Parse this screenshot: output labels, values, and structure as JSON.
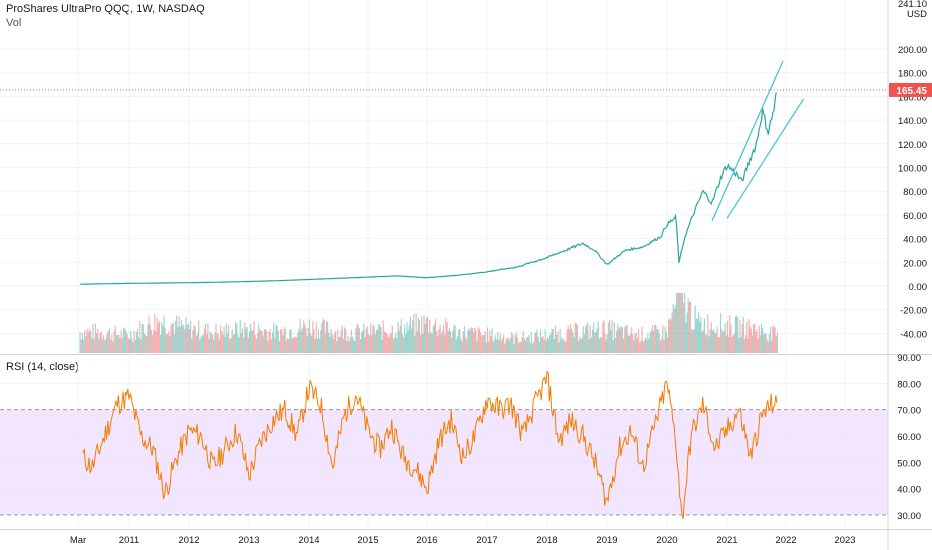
{
  "header": {
    "title": "ProShares UltraPro QQQ, 1W, NASDAQ",
    "volume_label": "Vol",
    "currency": "USD"
  },
  "colors": {
    "up": "#26a69a",
    "down": "#ef5350",
    "rsi_line": "#f57c00",
    "rsi_band": "#eedcff",
    "channel": "#4fc3d7",
    "price_tag": "#ef5350"
  },
  "chart_data": [
    {
      "type": "line",
      "title": "ProShares UltraPro QQQ, 1W, NASDAQ",
      "ylabel": "USD",
      "x_ticks": [
        "Mar",
        "2011",
        "2012",
        "2013",
        "2014",
        "2015",
        "2016",
        "2017",
        "2018",
        "2019",
        "2020",
        "2021",
        "2022",
        "2023"
      ],
      "y_ticks": [
        "-40.00",
        "-20.00",
        "0.00",
        "20.00",
        "40.00",
        "60.00",
        "80.00",
        "100.00",
        "120.00",
        "140.00",
        "160.00",
        "180.00",
        "200.00",
        "241.10"
      ],
      "ylim": [
        -55,
        241.1
      ],
      "last_price": 165.45,
      "last_price_label": "165.45",
      "series": [
        {
          "name": "Price",
          "x": [
            2010.2,
            2010.5,
            2011.0,
            2011.5,
            2012.0,
            2012.5,
            2013.0,
            2013.5,
            2014.0,
            2014.5,
            2015.0,
            2015.5,
            2016.0,
            2016.5,
            2017.0,
            2017.5,
            2018.0,
            2018.3,
            2018.6,
            2018.8,
            2019.0,
            2019.3,
            2019.6,
            2019.9,
            2020.0,
            2020.15,
            2020.2,
            2020.3,
            2020.45,
            2020.6,
            2020.75,
            2020.9,
            2021.0,
            2021.15,
            2021.25,
            2021.4,
            2021.5,
            2021.6,
            2021.7,
            2021.8,
            2021.85
          ],
          "y": [
            1.5,
            1.8,
            2.2,
            2.5,
            2.8,
            3.2,
            3.8,
            4.5,
            5.5,
            6.5,
            7.5,
            8.5,
            7.0,
            9.0,
            12.0,
            16.0,
            24.0,
            30.0,
            36.0,
            30.0,
            18.0,
            30.0,
            33.0,
            42.0,
            52.0,
            58.0,
            20.0,
            42.0,
            62.0,
            80.0,
            70.0,
            92.0,
            102.0,
            95.0,
            88.0,
            108.0,
            120.0,
            148.0,
            130.0,
            150.0,
            165.45
          ]
        }
      ],
      "channel": {
        "upper": {
          "x": [
            2020.75,
            2021.95
          ],
          "y": [
            55.0,
            190.0
          ]
        },
        "lower": {
          "x": [
            2021.0,
            2022.3
          ],
          "y": [
            57.0,
            158.0
          ]
        }
      }
    },
    {
      "type": "bar",
      "title": "Vol",
      "note": "volume pane, values relative (no printed scale)",
      "x": [
        2010.5,
        2011.0,
        2011.5,
        2012.0,
        2012.5,
        2013.0,
        2013.5,
        2014.0,
        2014.5,
        2015.0,
        2015.5,
        2016.0,
        2016.5,
        2017.0,
        2017.5,
        2018.0,
        2018.5,
        2019.0,
        2019.5,
        2020.0,
        2020.2,
        2020.5,
        2021.0,
        2021.5,
        2021.85
      ],
      "values": [
        0.35,
        0.3,
        0.55,
        0.4,
        0.35,
        0.4,
        0.35,
        0.45,
        0.35,
        0.35,
        0.4,
        0.5,
        0.35,
        0.3,
        0.25,
        0.3,
        0.35,
        0.4,
        0.3,
        0.35,
        1.0,
        0.5,
        0.45,
        0.4,
        0.3
      ]
    },
    {
      "type": "line",
      "title": "RSI (14, close)",
      "y_ticks": [
        "30.00",
        "40.00",
        "50.00",
        "60.00",
        "70.00",
        "80.00",
        "90.00"
      ],
      "ylim": [
        27.5,
        90
      ],
      "band": [
        30,
        70
      ],
      "series": [
        {
          "name": "RSI (14, close)",
          "x": [
            2010.25,
            2010.4,
            2010.6,
            2010.8,
            2011.0,
            2011.2,
            2011.4,
            2011.6,
            2011.8,
            2012.0,
            2012.2,
            2012.4,
            2012.6,
            2012.8,
            2013.0,
            2013.2,
            2013.4,
            2013.6,
            2013.8,
            2014.0,
            2014.2,
            2014.4,
            2014.6,
            2014.8,
            2015.0,
            2015.2,
            2015.4,
            2015.6,
            2015.8,
            2016.0,
            2016.2,
            2016.4,
            2016.6,
            2016.8,
            2017.0,
            2017.2,
            2017.4,
            2017.6,
            2017.8,
            2018.0,
            2018.2,
            2018.4,
            2018.6,
            2018.8,
            2019.0,
            2019.2,
            2019.4,
            2019.6,
            2019.8,
            2020.0,
            2020.15,
            2020.25,
            2020.4,
            2020.6,
            2020.8,
            2021.0,
            2021.2,
            2021.4,
            2021.6,
            2021.8,
            2021.85
          ],
          "y": [
            52,
            48,
            60,
            72,
            75,
            60,
            55,
            38,
            52,
            62,
            60,
            48,
            55,
            62,
            45,
            58,
            66,
            70,
            60,
            78,
            72,
            48,
            68,
            76,
            62,
            55,
            64,
            52,
            48,
            40,
            58,
            66,
            52,
            60,
            74,
            70,
            72,
            60,
            72,
            82,
            58,
            66,
            60,
            50,
            35,
            55,
            62,
            48,
            64,
            80,
            58,
            28,
            60,
            72,
            55,
            62,
            70,
            52,
            68,
            73,
            70
          ]
        }
      ]
    }
  ]
}
